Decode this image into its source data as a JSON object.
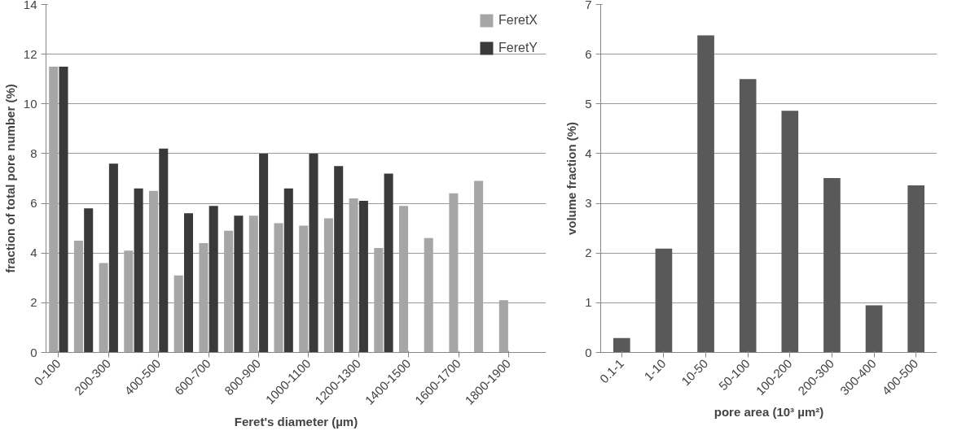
{
  "chart_data": [
    {
      "type": "bar",
      "xlabel": "Feret's diameter (µm)",
      "ylabel": "fraction of total pore number (%)",
      "categories": [
        "0-100",
        null,
        "200-300",
        null,
        "400-500",
        null,
        "600-700",
        null,
        "800-900",
        null,
        "1000-1100",
        null,
        "1200-1300",
        null,
        "1400-1500",
        null,
        "1600-1700",
        null,
        "1800-1900",
        null
      ],
      "series": [
        {
          "name": "FeretX",
          "color": "#a6a6a6",
          "values": [
            11.5,
            4.5,
            3.6,
            4.1,
            6.5,
            3.1,
            4.4,
            4.9,
            5.5,
            5.2,
            5.1,
            5.4,
            6.2,
            4.2,
            5.9,
            4.6,
            6.4,
            6.9,
            2.1,
            null
          ]
        },
        {
          "name": "FeretY",
          "color": "#3a3a3a",
          "values": [
            11.5,
            5.8,
            7.6,
            6.6,
            8.2,
            5.6,
            5.9,
            5.5,
            8.0,
            6.6,
            8.0,
            7.5,
            6.1,
            7.2,
            null,
            null,
            null,
            null,
            null,
            null
          ]
        }
      ],
      "ylim": [
        0,
        14
      ],
      "yticks": [
        0,
        2,
        4,
        6,
        8,
        10,
        12,
        14
      ],
      "grid": "y",
      "legend": "top right"
    },
    {
      "type": "bar",
      "xlabel": "pore area (10³ µm²)",
      "ylabel": "volume fraction (%)",
      "categories": [
        "0.1-1",
        "1-10",
        "10-50",
        "50-100",
        "100-200",
        "200-300",
        "300-400",
        "400-500"
      ],
      "series": [
        {
          "color": "#595959",
          "values": [
            0.29,
            2.09,
            6.38,
            5.5,
            4.86,
            3.51,
            0.95,
            3.36
          ]
        }
      ],
      "ylim": [
        0,
        7
      ],
      "yticks": [
        0,
        1,
        2,
        3,
        4,
        5,
        6,
        7
      ],
      "grid": "y"
    }
  ]
}
